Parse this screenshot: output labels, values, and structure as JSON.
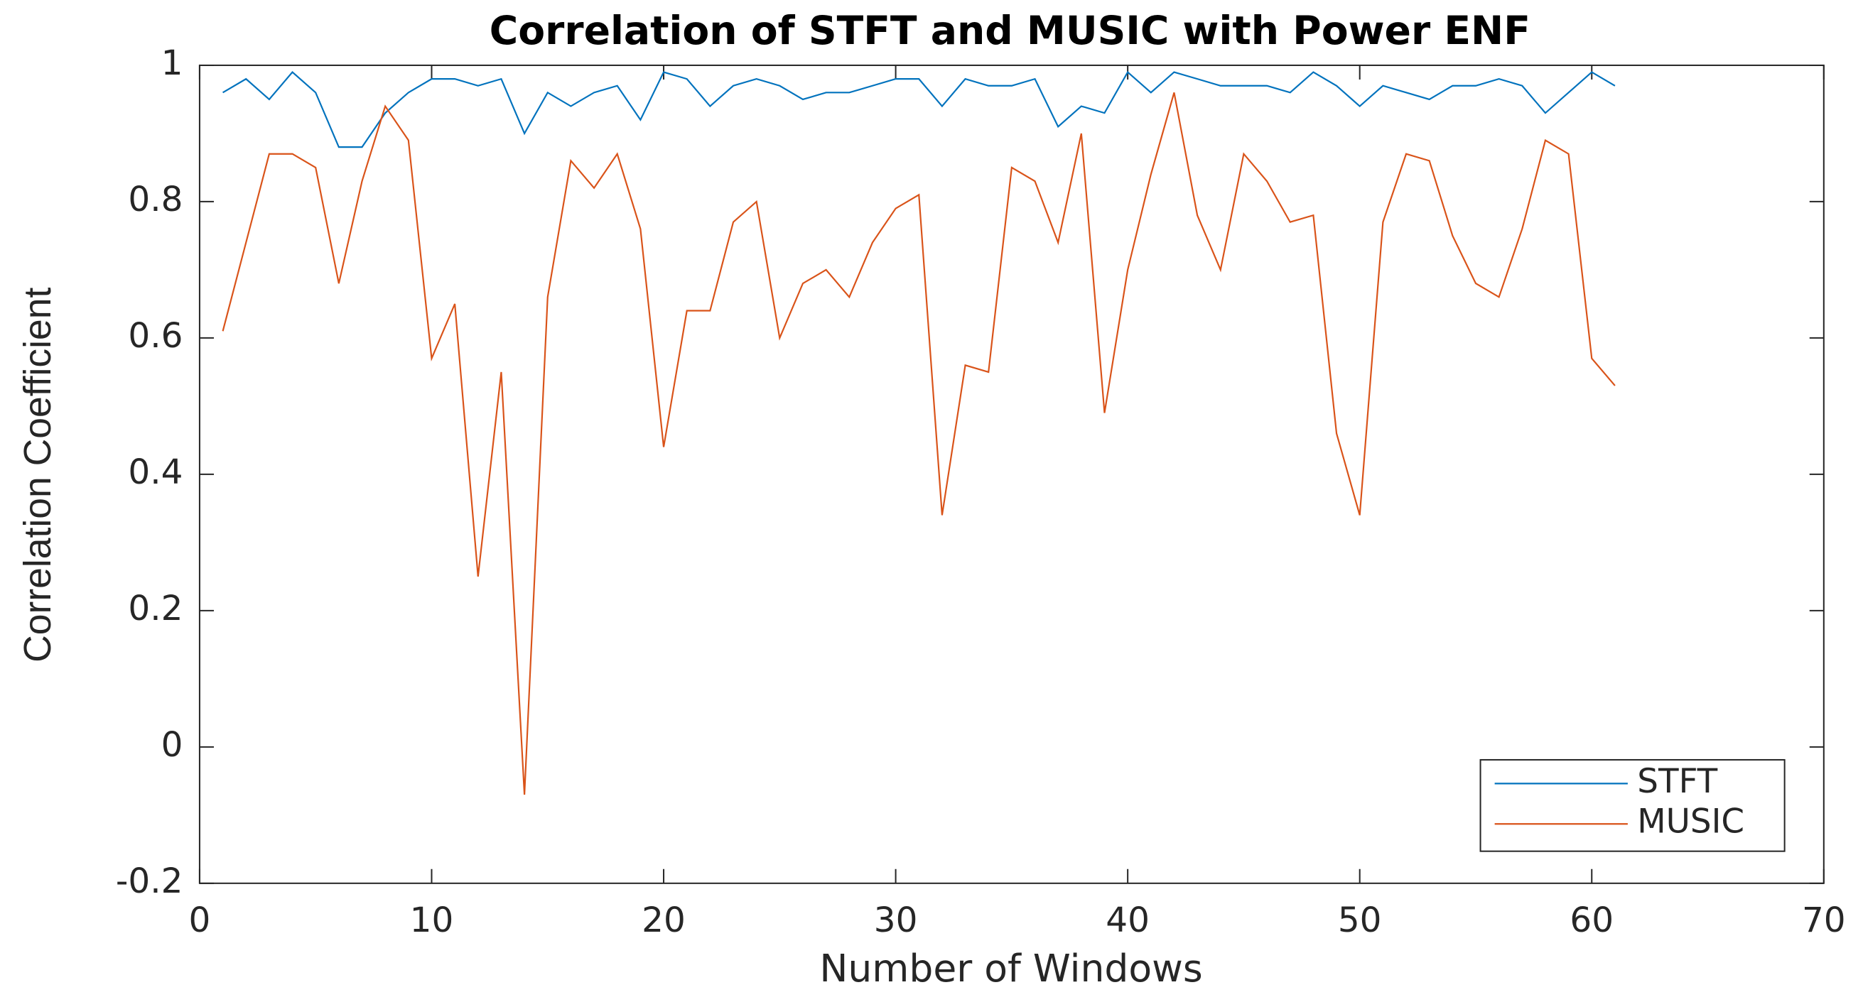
{
  "chart_data": {
    "type": "line",
    "title": "Correlation of STFT and MUSIC with Power ENF",
    "x_label": "Number of Windows",
    "y_label": "Correlation Coefficient",
    "x": [
      1,
      2,
      3,
      4,
      5,
      6,
      7,
      8,
      9,
      10,
      11,
      12,
      13,
      14,
      15,
      16,
      17,
      18,
      19,
      20,
      21,
      22,
      23,
      24,
      25,
      26,
      27,
      28,
      29,
      30,
      31,
      32,
      33,
      34,
      35,
      36,
      37,
      38,
      39,
      40,
      41,
      42,
      43,
      44,
      45,
      46,
      47,
      48,
      49,
      50,
      51,
      52,
      53,
      54,
      55,
      56,
      57,
      58,
      59,
      60,
      61
    ],
    "series": [
      {
        "name": "STFT",
        "color": "#0072bd",
        "values": [
          0.96,
          0.98,
          0.95,
          0.99,
          0.96,
          0.88,
          0.88,
          0.93,
          0.96,
          0.98,
          0.98,
          0.97,
          0.98,
          0.9,
          0.96,
          0.94,
          0.96,
          0.97,
          0.92,
          0.99,
          0.98,
          0.94,
          0.97,
          0.98,
          0.97,
          0.95,
          0.96,
          0.96,
          0.97,
          0.98,
          0.98,
          0.94,
          0.98,
          0.97,
          0.97,
          0.98,
          0.91,
          0.94,
          0.93,
          0.99,
          0.96,
          0.99,
          0.98,
          0.97,
          0.97,
          0.97,
          0.96,
          0.99,
          0.97,
          0.94,
          0.97,
          0.96,
          0.95,
          0.97,
          0.97,
          0.98,
          0.97,
          0.93,
          0.96,
          0.99,
          0.97
        ]
      },
      {
        "name": "MUSIC",
        "color": "#d95319",
        "values": [
          0.61,
          0.74,
          0.87,
          0.87,
          0.85,
          0.68,
          0.83,
          0.94,
          0.89,
          0.57,
          0.65,
          0.25,
          0.55,
          -0.07,
          0.66,
          0.86,
          0.82,
          0.87,
          0.76,
          0.44,
          0.64,
          0.64,
          0.77,
          0.8,
          0.6,
          0.68,
          0.7,
          0.66,
          0.74,
          0.79,
          0.81,
          0.34,
          0.56,
          0.55,
          0.85,
          0.83,
          0.74,
          0.9,
          0.49,
          0.7,
          0.84,
          0.96,
          0.78,
          0.7,
          0.87,
          0.83,
          0.77,
          0.78,
          0.46,
          0.34,
          0.77,
          0.87,
          0.86,
          0.75,
          0.68,
          0.66,
          0.76,
          0.89,
          0.87,
          0.57,
          0.53
        ]
      }
    ],
    "xlim": [
      0,
      70
    ],
    "xticks": [
      0,
      10,
      20,
      30,
      40,
      50,
      60,
      70
    ],
    "ylim": [
      -0.2,
      1
    ],
    "yticks": [
      -0.2,
      0,
      0.2,
      0.4,
      0.6,
      0.8,
      1
    ],
    "grid": false,
    "legend": "lower right"
  }
}
